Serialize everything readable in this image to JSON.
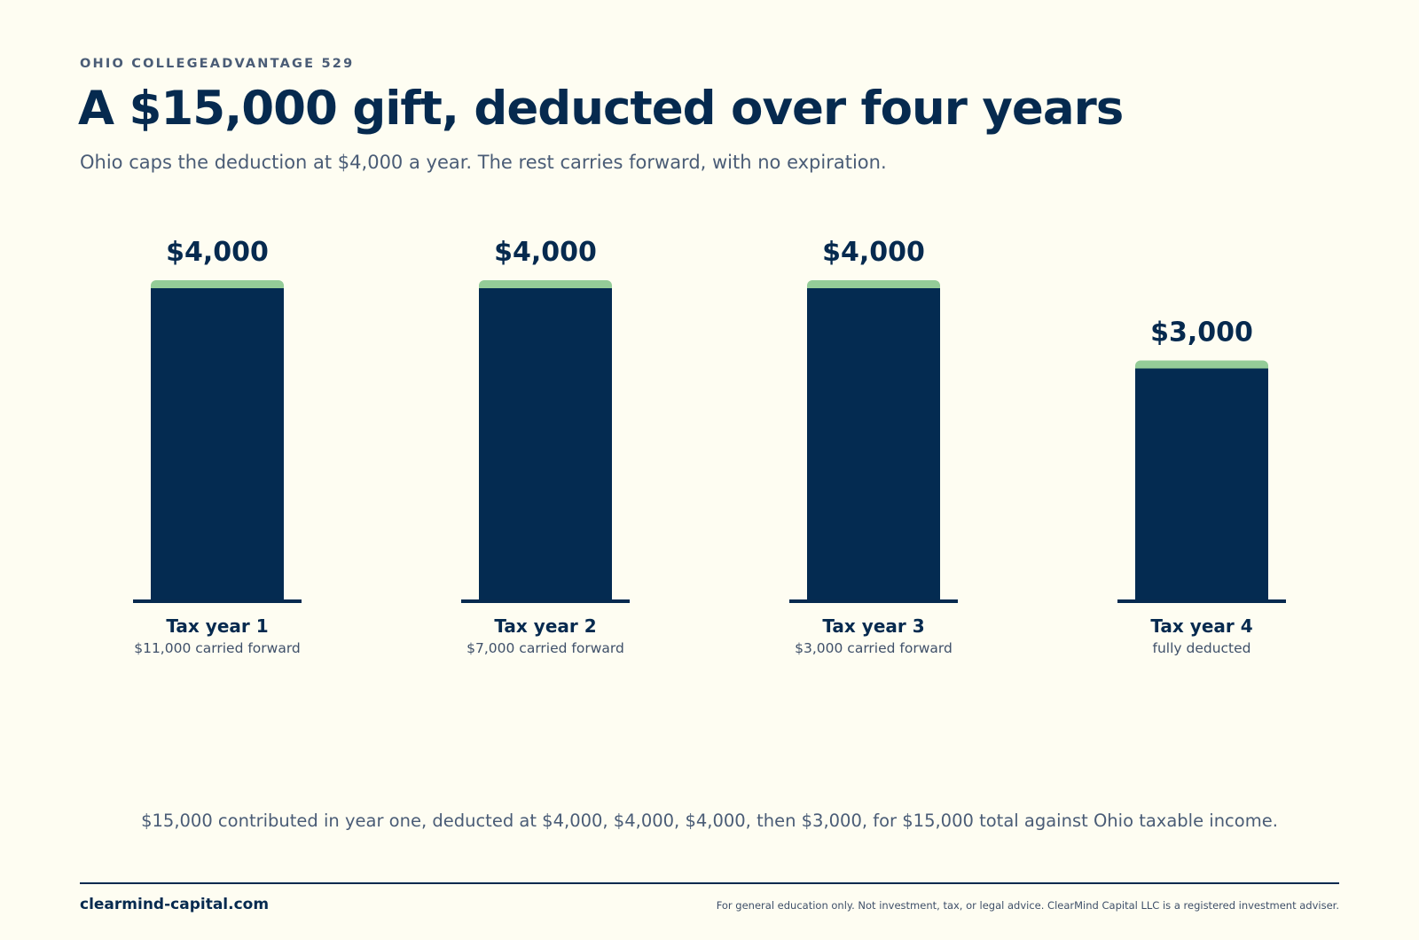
{
  "header": {
    "eyebrow": "OHIO COLLEGEADVANTAGE 529",
    "title": "A $15,000 gift, deducted over four years",
    "subtitle": "Ohio caps the deduction at $4,000 a year. The rest carries forward, with no expiration."
  },
  "chart_data": {
    "type": "bar",
    "categories": [
      "Tax year 1",
      "Tax year 2",
      "Tax year 3",
      "Tax year 4"
    ],
    "values": [
      4000,
      4000,
      4000,
      3000
    ],
    "value_labels": [
      "$4,000",
      "$4,000",
      "$4,000",
      "$3,000"
    ],
    "sublabels": [
      "$11,000 carried forward",
      "$7,000 carried forward",
      "$3,000 carried forward",
      "fully deducted"
    ],
    "ylim": [
      0,
      4000
    ],
    "grid": false,
    "colors": {
      "bar": "#042b51",
      "cap": "#94cc98",
      "baseline": "#062a4f"
    }
  },
  "summary": "$15,000 contributed in year one, deducted at $4,000, $4,000, $4,000, then $3,000, for $15,000 total against Ohio taxable income.",
  "footer": {
    "brand": "clearmind-capital.com",
    "disclaimer": "For general education only. Not investment, tax, or legal advice. ClearMind Capital LLC is a registered investment adviser."
  }
}
